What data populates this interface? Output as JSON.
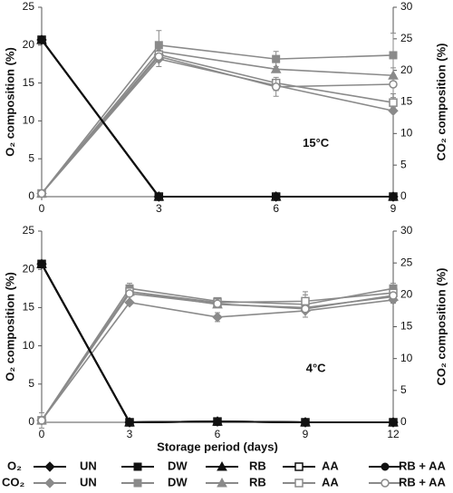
{
  "chart_data": [
    {
      "type": "line",
      "annotation": "15°C",
      "ylabel": "O₂ composition (%)",
      "y2label": "CO₂ composition (%)",
      "x": [
        0,
        3,
        6,
        9
      ],
      "xlim": [
        0,
        9
      ],
      "xticks": [
        0,
        3,
        6,
        9
      ],
      "ylim": [
        0,
        25
      ],
      "yticks": [
        0,
        5,
        10,
        15,
        20,
        25
      ],
      "y2lim": [
        0,
        30
      ],
      "y2ticks": [
        0,
        5,
        10,
        15,
        20,
        25,
        30
      ],
      "series": [
        {
          "name": "UN",
          "color": "#111111",
          "marker": "diamond",
          "values": [
            20.7,
            0,
            0,
            0
          ]
        },
        {
          "name": "DW",
          "color": "#111111",
          "marker": "square",
          "values": [
            20.7,
            0,
            0,
            0
          ]
        },
        {
          "name": "RB",
          "color": "#111111",
          "marker": "triangle",
          "values": [
            20.7,
            0,
            0,
            0
          ]
        },
        {
          "name": "AA",
          "color": "#111111",
          "marker": "open-square",
          "values": [
            20.7,
            0,
            0,
            0
          ]
        },
        {
          "name": "RB + AA",
          "color": "#111111",
          "marker": "circle",
          "values": [
            20.7,
            0,
            0,
            0
          ]
        },
        {
          "name": "UN",
          "color": "#8a8a8a",
          "marker": "diamond",
          "axis": "y2",
          "values": [
            0.5,
            21.8,
            17.6,
            13.6
          ],
          "errors": [
            null,
            1.2,
            0.8,
            null
          ]
        },
        {
          "name": "DW",
          "color": "#8a8a8a",
          "marker": "square",
          "axis": "y2",
          "values": [
            0.5,
            24,
            21.8,
            22.4
          ],
          "errors": [
            null,
            2.3,
            1.2,
            3.5
          ]
        },
        {
          "name": "RB",
          "color": "#8a8a8a",
          "marker": "triangle",
          "axis": "y2",
          "values": [
            0.5,
            23,
            20.2,
            19.2
          ],
          "errors": [
            null,
            1.5,
            null,
            1.2
          ]
        },
        {
          "name": "AA",
          "color": "#8a8a8a",
          "marker": "open-square",
          "axis": "y2",
          "values": [
            0.5,
            22.5,
            18,
            14.9
          ],
          "errors": [
            null,
            null,
            null,
            0.8
          ]
        },
        {
          "name": "RB + AA",
          "color": "#8a8a8a",
          "marker": "open-circle",
          "axis": "y2",
          "values": [
            0.5,
            22.2,
            17.4,
            17.8
          ],
          "errors": [
            null,
            null,
            1.5,
            1.5
          ]
        }
      ]
    },
    {
      "type": "line",
      "annotation": "4°C",
      "ylabel": "O₂ composition (%)",
      "y2label": "CO₂ composition (%)",
      "xlabel": "Storage period (days)",
      "x": [
        0,
        3,
        6,
        9,
        12
      ],
      "xlim": [
        0,
        12
      ],
      "xticks": [
        0,
        3,
        6,
        9,
        12
      ],
      "ylim": [
        0,
        25
      ],
      "yticks": [
        0,
        5,
        10,
        15,
        20,
        25
      ],
      "y2lim": [
        0,
        30
      ],
      "y2ticks": [
        0,
        5,
        10,
        15,
        20,
        25,
        30
      ],
      "series": [
        {
          "name": "UN",
          "color": "#111111",
          "marker": "diamond",
          "values": [
            20.7,
            0,
            0.1,
            0,
            0
          ]
        },
        {
          "name": "DW",
          "color": "#111111",
          "marker": "square",
          "values": [
            20.7,
            0,
            0.1,
            0,
            0
          ]
        },
        {
          "name": "RB",
          "color": "#111111",
          "marker": "triangle",
          "values": [
            20.7,
            0,
            0.1,
            0,
            0
          ]
        },
        {
          "name": "AA",
          "color": "#111111",
          "marker": "open-square",
          "values": [
            20.7,
            0,
            0.1,
            0,
            0
          ]
        },
        {
          "name": "RB + AA",
          "color": "#111111",
          "marker": "circle",
          "values": [
            20.7,
            0,
            0.1,
            0,
            0
          ]
        },
        {
          "name": "UN",
          "color": "#8a8a8a",
          "marker": "diamond",
          "axis": "y2",
          "values": [
            0.3,
            18.8,
            16.5,
            17.5,
            19.2
          ],
          "errors": [
            1.2,
            null,
            0.7,
            1,
            null
          ]
        },
        {
          "name": "DW",
          "color": "#8a8a8a",
          "marker": "square",
          "axis": "y2",
          "values": [
            0.3,
            21,
            19,
            18.5,
            21
          ],
          "errors": [
            null,
            0.8,
            0.5,
            2,
            0.8
          ]
        },
        {
          "name": "RB",
          "color": "#8a8a8a",
          "marker": "triangle",
          "axis": "y2",
          "values": [
            0.3,
            20.5,
            18.5,
            18,
            19.7
          ],
          "errors": [
            null,
            0.7,
            null,
            null,
            1
          ]
        },
        {
          "name": "AA",
          "color": "#8a8a8a",
          "marker": "open-square",
          "axis": "y2",
          "values": [
            0.3,
            20.5,
            18.8,
            19,
            20.3
          ],
          "errors": [
            null,
            null,
            null,
            1,
            null
          ]
        },
        {
          "name": "RB + AA",
          "color": "#8a8a8a",
          "marker": "open-circle",
          "axis": "y2",
          "values": [
            0.3,
            20.2,
            18.6,
            17.8,
            19.9
          ],
          "errors": [
            null,
            null,
            null,
            null,
            null
          ]
        }
      ]
    }
  ],
  "legend": {
    "rows": [
      "O₂",
      "CO₂"
    ]
  }
}
